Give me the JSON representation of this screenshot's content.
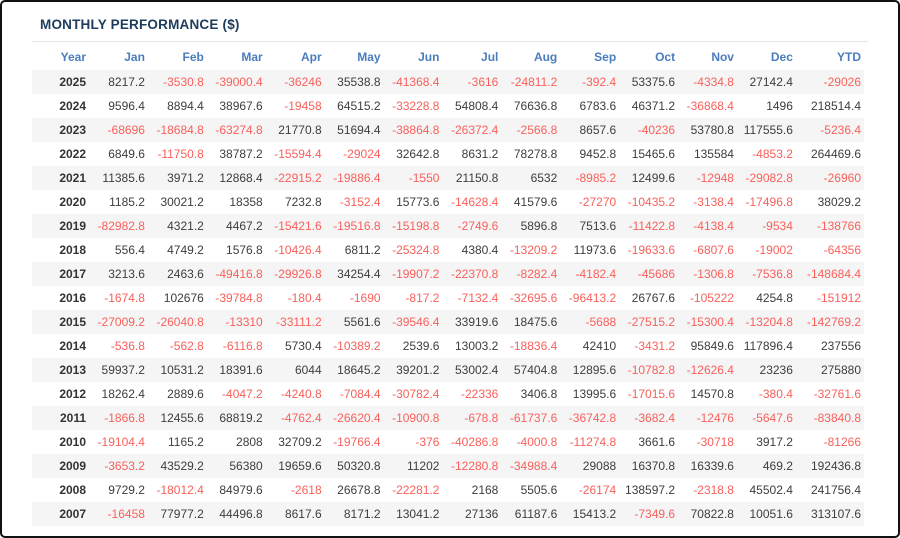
{
  "title": "MONTHLY PERFORMANCE ($)",
  "colors": {
    "title_text": "#1d3c5c",
    "header_text": "#4b7dbd",
    "positive": "#3d3d3d",
    "negative": "#fa5f5a",
    "stripe": "#f5f5f5",
    "border": "#111111"
  },
  "table": {
    "columns": [
      "Year",
      "Jan",
      "Feb",
      "Mar",
      "Apr",
      "May",
      "Jun",
      "Jul",
      "Aug",
      "Sep",
      "Oct",
      "Nov",
      "Dec",
      "YTD"
    ],
    "rows": [
      {
        "year": "2025",
        "values": [
          "8217.2",
          "-3530.8",
          "-39000.4",
          "-36246",
          "35538.8",
          "-41368.4",
          "-3616",
          "-24811.2",
          "-392.4",
          "53375.6",
          "-4334.8",
          "27142.4",
          "-29026"
        ]
      },
      {
        "year": "2024",
        "values": [
          "9596.4",
          "8894.4",
          "38967.6",
          "-19458",
          "64515.2",
          "-33228.8",
          "54808.4",
          "76636.8",
          "6783.6",
          "46371.2",
          "-36868.4",
          "1496",
          "218514.4"
        ]
      },
      {
        "year": "2023",
        "values": [
          "-68696",
          "-18684.8",
          "-63274.8",
          "21770.8",
          "51694.4",
          "-38864.8",
          "-26372.4",
          "-2566.8",
          "8657.6",
          "-40236",
          "53780.8",
          "117555.6",
          "-5236.4"
        ]
      },
      {
        "year": "2022",
        "values": [
          "6849.6",
          "-11750.8",
          "38787.2",
          "-15594.4",
          "-29024",
          "32642.8",
          "8631.2",
          "78278.8",
          "9452.8",
          "15465.6",
          "135584",
          "-4853.2",
          "264469.6"
        ]
      },
      {
        "year": "2021",
        "values": [
          "11385.6",
          "3971.2",
          "12868.4",
          "-22915.2",
          "-19886.4",
          "-1550",
          "21150.8",
          "6532",
          "-8985.2",
          "12499.6",
          "-12948",
          "-29082.8",
          "-26960"
        ]
      },
      {
        "year": "2020",
        "values": [
          "1185.2",
          "30021.2",
          "18358",
          "7232.8",
          "-3152.4",
          "15773.6",
          "-14628.4",
          "41579.6",
          "-27270",
          "-10435.2",
          "-3138.4",
          "-17496.8",
          "38029.2"
        ]
      },
      {
        "year": "2019",
        "values": [
          "-82982.8",
          "4321.2",
          "4467.2",
          "-15421.6",
          "-19516.8",
          "-15198.8",
          "-2749.6",
          "5896.8",
          "7513.6",
          "-11422.8",
          "-4138.4",
          "-9534",
          "-138766"
        ]
      },
      {
        "year": "2018",
        "values": [
          "556.4",
          "4749.2",
          "1576.8",
          "-10426.4",
          "6811.2",
          "-25324.8",
          "4380.4",
          "-13209.2",
          "11973.6",
          "-19633.6",
          "-6807.6",
          "-19002",
          "-64356"
        ]
      },
      {
        "year": "2017",
        "values": [
          "3213.6",
          "2463.6",
          "-49416.8",
          "-29926.8",
          "34254.4",
          "-19907.2",
          "-22370.8",
          "-8282.4",
          "-4182.4",
          "-45686",
          "-1306.8",
          "-7536.8",
          "-148684.4"
        ]
      },
      {
        "year": "2016",
        "values": [
          "-1674.8",
          "102676",
          "-39784.8",
          "-180.4",
          "-1690",
          "-817.2",
          "-7132.4",
          "-32695.6",
          "-96413.2",
          "26767.6",
          "-105222",
          "4254.8",
          "-151912"
        ]
      },
      {
        "year": "2015",
        "values": [
          "-27009.2",
          "-26040.8",
          "-13310",
          "-33111.2",
          "5561.6",
          "-39546.4",
          "33919.6",
          "18475.6",
          "-5688",
          "-27515.2",
          "-15300.4",
          "-13204.8",
          "-142769.2"
        ]
      },
      {
        "year": "2014",
        "values": [
          "-536.8",
          "-562.8",
          "-6116.8",
          "5730.4",
          "-10389.2",
          "2539.6",
          "13003.2",
          "-18836.4",
          "42410",
          "-3431.2",
          "95849.6",
          "117896.4",
          "237556"
        ]
      },
      {
        "year": "2013",
        "values": [
          "59937.2",
          "10531.2",
          "18391.6",
          "6044",
          "18645.2",
          "39201.2",
          "53002.4",
          "57404.8",
          "12895.6",
          "-10782.8",
          "-12626.4",
          "23236",
          "275880"
        ]
      },
      {
        "year": "2012",
        "values": [
          "18262.4",
          "2889.6",
          "-4047.2",
          "-4240.8",
          "-7084.4",
          "-30782.4",
          "-22336",
          "3406.8",
          "13995.6",
          "-17015.6",
          "14570.8",
          "-380.4",
          "-32761.6"
        ]
      },
      {
        "year": "2011",
        "values": [
          "-1866.8",
          "12455.6",
          "68819.2",
          "-4762.4",
          "-26620.4",
          "-10900.8",
          "-678.8",
          "-61737.6",
          "-36742.8",
          "-3682.4",
          "-12476",
          "-5647.6",
          "-83840.8"
        ]
      },
      {
        "year": "2010",
        "values": [
          "-19104.4",
          "1165.2",
          "2808",
          "32709.2",
          "-19766.4",
          "-376",
          "-40286.8",
          "-4000.8",
          "-11274.8",
          "3661.6",
          "-30718",
          "3917.2",
          "-81266"
        ]
      },
      {
        "year": "2009",
        "values": [
          "-3653.2",
          "43529.2",
          "56380",
          "19659.6",
          "50320.8",
          "11202",
          "-12280.8",
          "-34988.4",
          "29088",
          "16370.8",
          "16339.6",
          "469.2",
          "192436.8"
        ]
      },
      {
        "year": "2008",
        "values": [
          "9729.2",
          "-18012.4",
          "84979.6",
          "-2618",
          "26678.8",
          "-22281.2",
          "2168",
          "5505.6",
          "-26174",
          "138597.2",
          "-2318.8",
          "45502.4",
          "241756.4"
        ]
      },
      {
        "year": "2007",
        "values": [
          "-16458",
          "77977.2",
          "44496.8",
          "8617.6",
          "8171.2",
          "13041.2",
          "27136",
          "61187.6",
          "15413.2",
          "-7349.6",
          "70822.8",
          "10051.6",
          "313107.6"
        ]
      }
    ]
  }
}
